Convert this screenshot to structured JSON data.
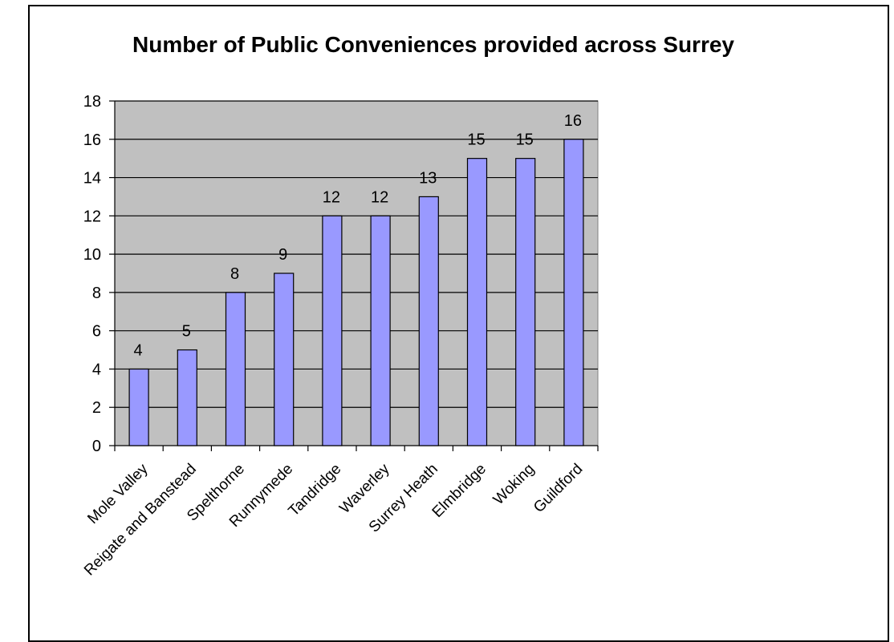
{
  "chart_data": {
    "type": "bar",
    "title": "Number of Public Conveniences provided across Surrey",
    "categories": [
      "Mole Valley",
      "Reigate and Banstead",
      "Spelthorne",
      "Runnymede",
      "Tandridge",
      "Waverley",
      "Surrey Heath",
      "Elmbridge",
      "Woking",
      "Guildford"
    ],
    "values": [
      4,
      5,
      8,
      9,
      12,
      12,
      13,
      15,
      15,
      16
    ],
    "data_labels": [
      "4",
      "5",
      "8",
      "9",
      "12",
      "12",
      "13",
      "15",
      "15",
      "16"
    ],
    "y_ticks": [
      "0",
      "2",
      "4",
      "6",
      "8",
      "10",
      "12",
      "14",
      "16",
      "18"
    ],
    "ylim": [
      0,
      18
    ],
    "xlabel": "",
    "ylabel": "",
    "grid": true,
    "legend": "none",
    "colors": {
      "bar_fill": "#9999FF",
      "bar_stroke": "#000000",
      "plot_background": "#C0C0C0",
      "gridline": "#000000"
    }
  }
}
